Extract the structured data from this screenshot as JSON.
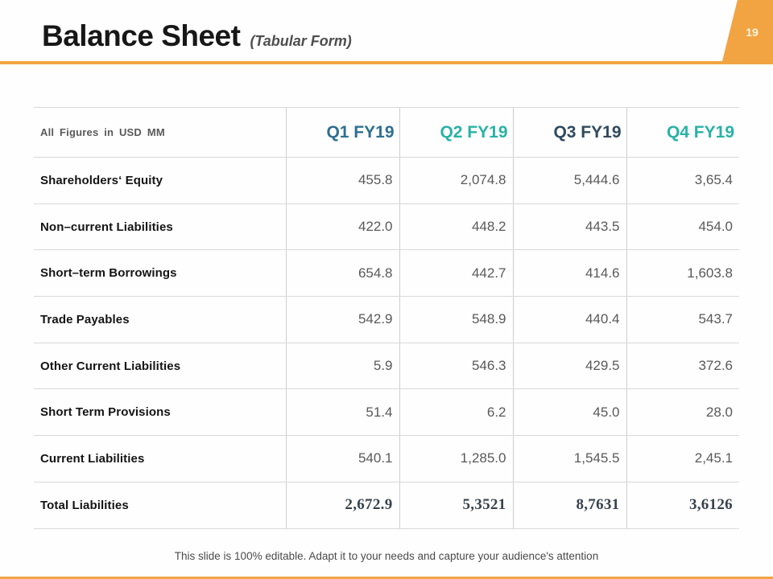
{
  "slide": {
    "title": "Balance Sheet",
    "subtitle": "(Tabular Form)",
    "page_number": "19",
    "footer_note": "This slide is 100% editable. Adapt it to your needs and capture your audience's attention"
  },
  "colors": {
    "accent_orange": "#F2A443",
    "badge_text": "#FDF7DF",
    "grid_line": "#D9D9D9",
    "grid_v": "#CFCFCF",
    "value_text": "#595959",
    "total_value_text": "#37434D"
  },
  "table": {
    "corner_label": "All Figures in USD MM",
    "column_headers": [
      {
        "label": "Q1 FY19",
        "color": "#2F6F91"
      },
      {
        "label": "Q2 FY19",
        "color": "#29B2A6"
      },
      {
        "label": "Q3 FY19",
        "color": "#2E4A5E"
      },
      {
        "label": "Q4 FY19",
        "color": "#29B2A6"
      }
    ],
    "rows": [
      {
        "label": "Shareholders‘ Equity",
        "values": [
          "455.8",
          "2,074.8",
          "5,444.6",
          "3,65.4"
        ],
        "emphasis": false
      },
      {
        "label": "Non–current Liabilities",
        "values": [
          "422.0",
          "448.2",
          "443.5",
          "454.0"
        ],
        "emphasis": false
      },
      {
        "label": "Short–term Borrowings",
        "values": [
          "654.8",
          "442.7",
          "414.6",
          "1,603.8"
        ],
        "emphasis": false
      },
      {
        "label": "Trade Payables",
        "values": [
          "542.9",
          "548.9",
          "440.4",
          "543.7"
        ],
        "emphasis": false
      },
      {
        "label": "Other Current Liabilities",
        "values": [
          "5.9",
          "546.3",
          "429.5",
          "372.6"
        ],
        "emphasis": false
      },
      {
        "label": "Short Term Provisions",
        "values": [
          "51.4",
          "6.2",
          "45.0",
          "28.0"
        ],
        "emphasis": false
      },
      {
        "label": "Current Liabilities",
        "values": [
          "540.1",
          "1,285.0",
          "1,545.5",
          "2,45.1"
        ],
        "emphasis": false
      },
      {
        "label": "Total Liabilities",
        "values": [
          "2,672.9",
          "5,3521",
          "8,7631",
          "3,6126"
        ],
        "emphasis": true
      }
    ]
  }
}
